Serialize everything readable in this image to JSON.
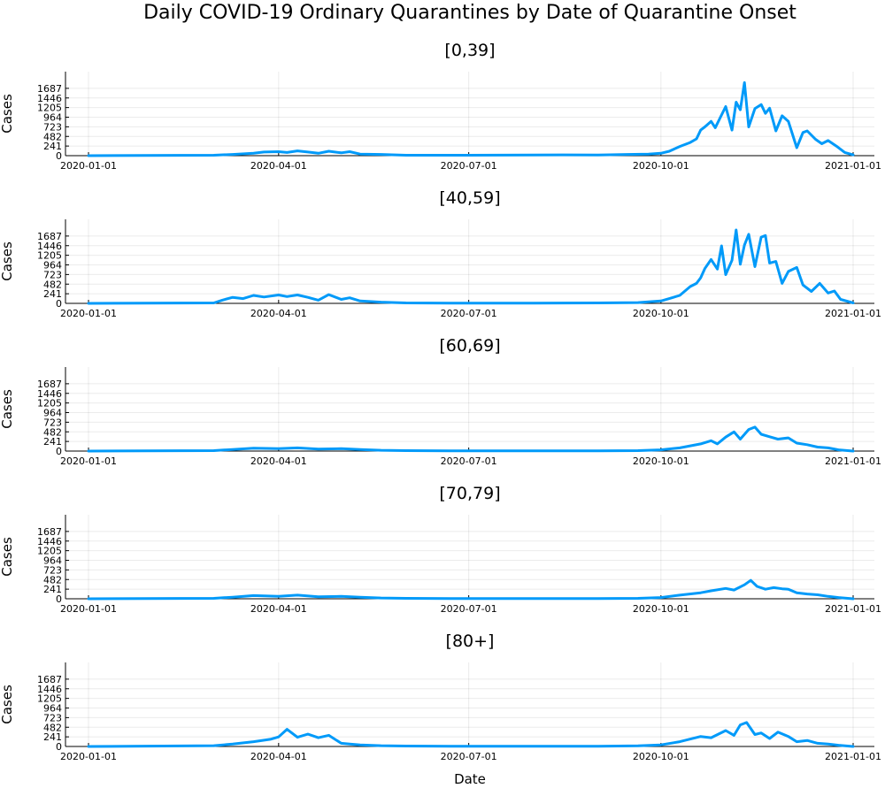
{
  "chart_data": {
    "type": "line",
    "title": "Daily COVID-19 Ordinary Quarantines by Date of Quarantine Onset",
    "xlabel": "Date",
    "ylabel": "Cases",
    "xlim": [
      "2020-01-01",
      "2021-01-01"
    ],
    "ylim": [
      0,
      1928
    ],
    "x_ticks": [
      "2020-01-01",
      "2020-04-01",
      "2020-07-01",
      "2020-10-01",
      "2021-01-01"
    ],
    "y_ticks": [
      0,
      241,
      482,
      723,
      964,
      1205,
      1446,
      1687
    ],
    "grid": true,
    "legend": "none",
    "line_color": "#009af9",
    "panels": [
      {
        "title": "[0,39]",
        "series": [
          {
            "x": [
              "2020-01-01",
              "2020-03-01",
              "2020-03-10",
              "2020-03-20",
              "2020-03-25",
              "2020-04-01",
              "2020-04-05",
              "2020-04-10",
              "2020-04-15",
              "2020-04-20",
              "2020-04-25",
              "2020-05-01",
              "2020-05-05",
              "2020-05-10",
              "2020-05-20",
              "2020-06-01",
              "2020-07-01",
              "2020-08-01",
              "2020-08-15",
              "2020-09-01",
              "2020-09-15",
              "2020-09-25",
              "2020-10-01",
              "2020-10-05",
              "2020-10-10",
              "2020-10-15",
              "2020-10-18",
              "2020-10-20",
              "2020-10-22",
              "2020-10-25",
              "2020-10-27",
              "2020-10-30",
              "2020-11-01",
              "2020-11-04",
              "2020-11-06",
              "2020-11-08",
              "2020-11-10",
              "2020-11-12",
              "2020-11-15",
              "2020-11-18",
              "2020-11-20",
              "2020-11-22",
              "2020-11-25",
              "2020-11-28",
              "2020-12-01",
              "2020-12-05",
              "2020-12-08",
              "2020-12-10",
              "2020-12-14",
              "2020-12-17",
              "2020-12-20",
              "2020-12-24",
              "2020-12-28",
              "2021-01-01"
            ],
            "y": [
              0,
              10,
              30,
              60,
              90,
              100,
              80,
              120,
              90,
              60,
              110,
              70,
              100,
              40,
              30,
              10,
              10,
              15,
              20,
              15,
              30,
              40,
              60,
              110,
              230,
              330,
              420,
              640,
              720,
              860,
              700,
              1020,
              1230,
              640,
              1340,
              1150,
              1830,
              720,
              1180,
              1280,
              1060,
              1190,
              620,
              1000,
              860,
              200,
              580,
              620,
              410,
              300,
              380,
              240,
              80,
              20
            ]
          }
        ]
      },
      {
        "title": "[40,59]",
        "series": [
          {
            "x": [
              "2020-01-01",
              "2020-03-01",
              "2020-03-05",
              "2020-03-10",
              "2020-03-15",
              "2020-03-20",
              "2020-03-25",
              "2020-04-01",
              "2020-04-05",
              "2020-04-10",
              "2020-04-15",
              "2020-04-20",
              "2020-04-25",
              "2020-05-01",
              "2020-05-05",
              "2020-05-10",
              "2020-05-20",
              "2020-06-01",
              "2020-07-01",
              "2020-08-01",
              "2020-09-01",
              "2020-09-20",
              "2020-10-01",
              "2020-10-05",
              "2020-10-10",
              "2020-10-15",
              "2020-10-18",
              "2020-10-20",
              "2020-10-22",
              "2020-10-25",
              "2020-10-28",
              "2020-10-30",
              "2020-11-01",
              "2020-11-04",
              "2020-11-06",
              "2020-11-08",
              "2020-11-10",
              "2020-11-12",
              "2020-11-15",
              "2020-11-18",
              "2020-11-20",
              "2020-11-22",
              "2020-11-25",
              "2020-11-28",
              "2020-12-01",
              "2020-12-05",
              "2020-12-08",
              "2020-12-12",
              "2020-12-16",
              "2020-12-20",
              "2020-12-23",
              "2020-12-26",
              "2021-01-01"
            ],
            "y": [
              0,
              10,
              80,
              150,
              120,
              200,
              160,
              210,
              170,
              210,
              150,
              80,
              220,
              100,
              140,
              60,
              30,
              10,
              5,
              5,
              10,
              20,
              60,
              120,
              200,
              420,
              500,
              640,
              870,
              1100,
              860,
              1440,
              720,
              1080,
              1840,
              980,
              1460,
              1730,
              920,
              1660,
              1700,
              1010,
              1050,
              500,
              800,
              900,
              460,
              300,
              500,
              260,
              310,
              100,
              10
            ]
          }
        ]
      },
      {
        "title": "[60,69]",
        "series": [
          {
            "x": [
              "2020-01-01",
              "2020-03-01",
              "2020-03-10",
              "2020-03-20",
              "2020-04-01",
              "2020-04-10",
              "2020-04-20",
              "2020-05-01",
              "2020-05-10",
              "2020-05-20",
              "2020-06-01",
              "2020-07-01",
              "2020-08-01",
              "2020-09-01",
              "2020-09-20",
              "2020-10-01",
              "2020-10-10",
              "2020-10-20",
              "2020-10-25",
              "2020-10-28",
              "2020-11-01",
              "2020-11-05",
              "2020-11-08",
              "2020-11-12",
              "2020-11-15",
              "2020-11-18",
              "2020-11-22",
              "2020-11-26",
              "2020-12-01",
              "2020-12-05",
              "2020-12-10",
              "2020-12-15",
              "2020-12-20",
              "2020-12-25",
              "2021-01-01"
            ],
            "y": [
              0,
              10,
              40,
              70,
              60,
              80,
              50,
              60,
              40,
              20,
              10,
              5,
              5,
              5,
              10,
              30,
              80,
              180,
              260,
              180,
              350,
              480,
              300,
              540,
              600,
              420,
              360,
              300,
              330,
              200,
              160,
              100,
              80,
              30,
              0
            ]
          }
        ]
      },
      {
        "title": "[70,79]",
        "series": [
          {
            "x": [
              "2020-01-01",
              "2020-03-01",
              "2020-03-10",
              "2020-03-20",
              "2020-04-01",
              "2020-04-10",
              "2020-04-20",
              "2020-05-01",
              "2020-05-10",
              "2020-05-20",
              "2020-06-01",
              "2020-07-01",
              "2020-08-01",
              "2020-09-01",
              "2020-09-20",
              "2020-10-01",
              "2020-10-10",
              "2020-10-20",
              "2020-10-25",
              "2020-11-01",
              "2020-11-05",
              "2020-11-10",
              "2020-11-13",
              "2020-11-16",
              "2020-11-20",
              "2020-11-24",
              "2020-11-28",
              "2020-12-01",
              "2020-12-05",
              "2020-12-10",
              "2020-12-15",
              "2020-12-20",
              "2020-12-25",
              "2021-01-01"
            ],
            "y": [
              0,
              10,
              40,
              80,
              60,
              90,
              50,
              60,
              40,
              20,
              10,
              5,
              5,
              5,
              10,
              30,
              90,
              150,
              200,
              260,
              220,
              350,
              460,
              310,
              240,
              280,
              250,
              240,
              150,
              120,
              100,
              60,
              30,
              0
            ]
          }
        ]
      },
      {
        "title": "[80+]",
        "series": [
          {
            "x": [
              "2020-01-01",
              "2020-03-01",
              "2020-03-10",
              "2020-03-20",
              "2020-03-28",
              "2020-04-01",
              "2020-04-05",
              "2020-04-10",
              "2020-04-15",
              "2020-04-20",
              "2020-04-25",
              "2020-05-01",
              "2020-05-05",
              "2020-05-10",
              "2020-05-20",
              "2020-06-01",
              "2020-07-01",
              "2020-08-01",
              "2020-09-01",
              "2020-09-20",
              "2020-10-01",
              "2020-10-10",
              "2020-10-20",
              "2020-10-25",
              "2020-11-01",
              "2020-11-05",
              "2020-11-08",
              "2020-11-11",
              "2020-11-15",
              "2020-11-18",
              "2020-11-22",
              "2020-11-26",
              "2020-12-01",
              "2020-12-05",
              "2020-12-10",
              "2020-12-15",
              "2020-12-20",
              "2020-12-25",
              "2021-01-01"
            ],
            "y": [
              0,
              20,
              60,
              120,
              180,
              240,
              430,
              230,
              310,
              220,
              280,
              80,
              60,
              40,
              20,
              10,
              5,
              5,
              5,
              15,
              40,
              120,
              250,
              220,
              400,
              280,
              540,
              600,
              300,
              340,
              200,
              360,
              250,
              120,
              150,
              80,
              60,
              30,
              0
            ]
          }
        ]
      }
    ]
  }
}
